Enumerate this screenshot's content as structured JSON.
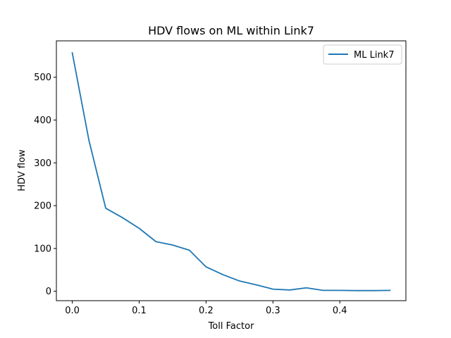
{
  "chart_data": {
    "type": "line",
    "title": "HDV flows on ML within Link7",
    "xlabel": "Toll Factor",
    "ylabel": "HDV flow",
    "xlim": [
      -0.02375,
      0.49875
    ],
    "ylim": [
      -22,
      585
    ],
    "xticks": [
      0.0,
      0.1,
      0.2,
      0.3,
      0.4
    ],
    "xtick_labels": [
      "0.0",
      "0.1",
      "0.2",
      "0.3",
      "0.4"
    ],
    "yticks": [
      0,
      100,
      200,
      300,
      400,
      500
    ],
    "ytick_labels": [
      "0",
      "100",
      "200",
      "300",
      "400",
      "500"
    ],
    "legend_position": "top-right",
    "series": [
      {
        "name": "ML Link7",
        "color": "#1f77b4",
        "x": [
          0.0,
          0.025,
          0.05,
          0.075,
          0.1,
          0.125,
          0.15,
          0.175,
          0.2,
          0.225,
          0.25,
          0.275,
          0.3,
          0.325,
          0.35,
          0.375,
          0.4,
          0.425,
          0.45,
          0.475
        ],
        "y": [
          557,
          352,
          194,
          172,
          147,
          116,
          108,
          96,
          57,
          39,
          24,
          15,
          5,
          3,
          8,
          2,
          2,
          1.5,
          1.5,
          2
        ]
      }
    ]
  }
}
